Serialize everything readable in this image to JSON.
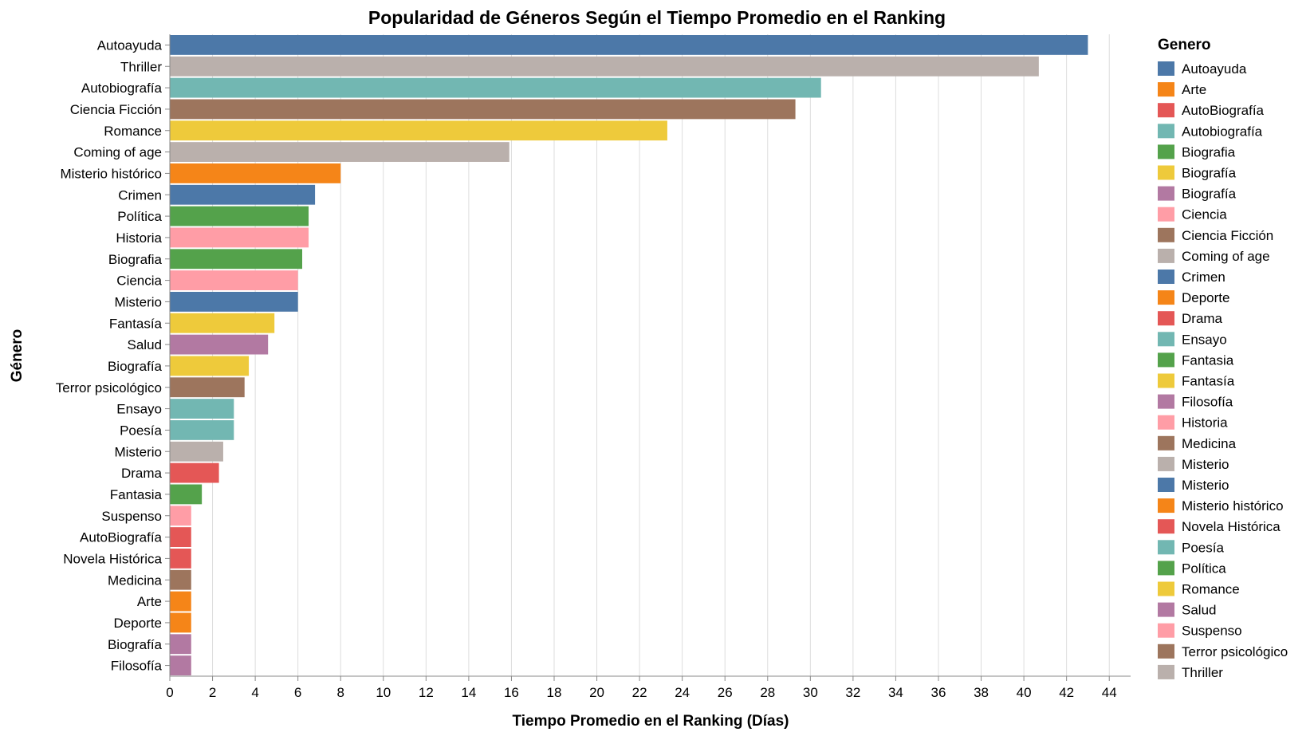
{
  "chart_data": {
    "type": "bar",
    "orientation": "horizontal",
    "title": "Popularidad de Géneros Según el Tiempo Promedio en el Ranking",
    "xlabel": "Tiempo Promedio en el Ranking (Días)",
    "ylabel": "Género",
    "xlim": [
      0,
      45
    ],
    "x_ticks": [
      0,
      2,
      4,
      6,
      8,
      10,
      12,
      14,
      16,
      18,
      20,
      22,
      24,
      26,
      28,
      30,
      32,
      34,
      36,
      38,
      40,
      42,
      44
    ],
    "grid": "vertical",
    "legend": {
      "title": "Genero",
      "placement": "right",
      "entries": [
        {
          "label": "Autoayuda",
          "color": "#4c78a8"
        },
        {
          "label": "Arte",
          "color": "#f58518"
        },
        {
          "label": "AutoBiografía",
          "color": "#e45756"
        },
        {
          "label": "Autobiografía",
          "color": "#72b7b2"
        },
        {
          "label": "Biografia",
          "color": "#54a24b"
        },
        {
          "label": "Biografía",
          "color": "#eeca3b"
        },
        {
          "label": "Biografía",
          "color": "#b279a2"
        },
        {
          "label": "Ciencia",
          "color": "#ff9da6"
        },
        {
          "label": "Ciencia Ficción",
          "color": "#9d755d"
        },
        {
          "label": "Coming of age",
          "color": "#bab0ac"
        },
        {
          "label": "Crimen",
          "color": "#4c78a8"
        },
        {
          "label": "Deporte",
          "color": "#f58518"
        },
        {
          "label": "Drama",
          "color": "#e45756"
        },
        {
          "label": "Ensayo",
          "color": "#72b7b2"
        },
        {
          "label": "Fantasia",
          "color": "#54a24b"
        },
        {
          "label": "Fantasía",
          "color": "#eeca3b"
        },
        {
          "label": "Filosofía",
          "color": "#b279a2"
        },
        {
          "label": "Historia",
          "color": "#ff9da6"
        },
        {
          "label": "Medicina",
          "color": "#9d755d"
        },
        {
          "label": "Misterio",
          "color": "#bab0ac"
        },
        {
          "label": "Misterio",
          "color": "#4c78a8"
        },
        {
          "label": "Misterio histórico",
          "color": "#f58518"
        },
        {
          "label": "Novela Histórica",
          "color": "#e45756"
        },
        {
          "label": "Poesía",
          "color": "#72b7b2"
        },
        {
          "label": "Política",
          "color": "#54a24b"
        },
        {
          "label": "Romance",
          "color": "#eeca3b"
        },
        {
          "label": "Salud",
          "color": "#b279a2"
        },
        {
          "label": "Suspenso",
          "color": "#ff9da6"
        },
        {
          "label": "Terror psicológico",
          "color": "#9d755d"
        },
        {
          "label": "Thriller",
          "color": "#bab0ac"
        }
      ]
    },
    "bars": [
      {
        "category": "Autoayuda",
        "value": 43.0,
        "color": "#4c78a8"
      },
      {
        "category": "Thriller",
        "value": 40.7,
        "color": "#bab0ac"
      },
      {
        "category": "Autobiografía",
        "value": 30.5,
        "color": "#72b7b2"
      },
      {
        "category": "Ciencia Ficción",
        "value": 29.3,
        "color": "#9d755d"
      },
      {
        "category": "Romance",
        "value": 23.3,
        "color": "#eeca3b"
      },
      {
        "category": "Coming of age",
        "value": 15.9,
        "color": "#bab0ac"
      },
      {
        "category": "Misterio histórico",
        "value": 8.0,
        "color": "#f58518"
      },
      {
        "category": "Crimen",
        "value": 6.8,
        "color": "#4c78a8"
      },
      {
        "category": "Política",
        "value": 6.5,
        "color": "#54a24b"
      },
      {
        "category": "Historia",
        "value": 6.5,
        "color": "#ff9da6"
      },
      {
        "category": "Biografia",
        "value": 6.2,
        "color": "#54a24b"
      },
      {
        "category": "Ciencia",
        "value": 6.0,
        "color": "#ff9da6"
      },
      {
        "category": "Misterio",
        "value": 6.0,
        "color": "#4c78a8"
      },
      {
        "category": "Fantasía",
        "value": 4.9,
        "color": "#eeca3b"
      },
      {
        "category": "Salud",
        "value": 4.6,
        "color": "#b279a2"
      },
      {
        "category": "Biografía",
        "value": 3.7,
        "color": "#eeca3b"
      },
      {
        "category": "Terror psicológico",
        "value": 3.5,
        "color": "#9d755d"
      },
      {
        "category": "Ensayo",
        "value": 3.0,
        "color": "#72b7b2"
      },
      {
        "category": "Poesía",
        "value": 3.0,
        "color": "#72b7b2"
      },
      {
        "category": "Misterio",
        "value": 2.5,
        "color": "#bab0ac"
      },
      {
        "category": "Drama",
        "value": 2.3,
        "color": "#e45756"
      },
      {
        "category": "Fantasia",
        "value": 1.5,
        "color": "#54a24b"
      },
      {
        "category": "Suspenso",
        "value": 1.0,
        "color": "#ff9da6"
      },
      {
        "category": "AutoBiografía",
        "value": 1.0,
        "color": "#e45756"
      },
      {
        "category": "Novela Histórica",
        "value": 1.0,
        "color": "#e45756"
      },
      {
        "category": "Medicina",
        "value": 1.0,
        "color": "#9d755d"
      },
      {
        "category": "Arte",
        "value": 1.0,
        "color": "#f58518"
      },
      {
        "category": "Deporte",
        "value": 1.0,
        "color": "#f58518"
      },
      {
        "category": "Biografía",
        "value": 1.0,
        "color": "#b279a2"
      },
      {
        "category": "Filosofía",
        "value": 1.0,
        "color": "#b279a2"
      }
    ]
  }
}
